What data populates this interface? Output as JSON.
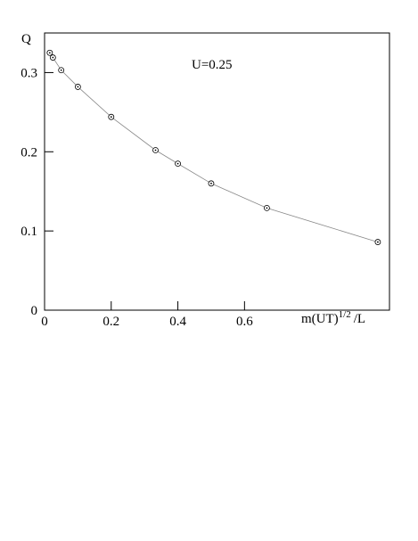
{
  "chart_data": {
    "type": "line",
    "y_label": "Q",
    "x_label": {
      "base": "m(UT)",
      "sup": "1/2",
      "tail": "/L"
    },
    "annotation": "U=0.25",
    "x": [
      0.0156,
      0.025,
      0.05,
      0.1,
      0.2,
      0.333,
      0.4,
      0.5,
      0.667,
      1.0
    ],
    "series": [
      {
        "color": "#888888",
        "values": [
          0.325,
          0.319,
          0.303,
          0.282,
          0.244,
          0.202,
          0.185,
          0.16,
          0.129,
          0.086
        ]
      }
    ],
    "xlim": [
      0,
      1.035
    ],
    "xticks": [
      0,
      0.2,
      0.4,
      0.6
    ],
    "ylim": [
      0,
      0.35
    ],
    "yticks": [
      0,
      0.1,
      0.2,
      0.3
    ]
  }
}
